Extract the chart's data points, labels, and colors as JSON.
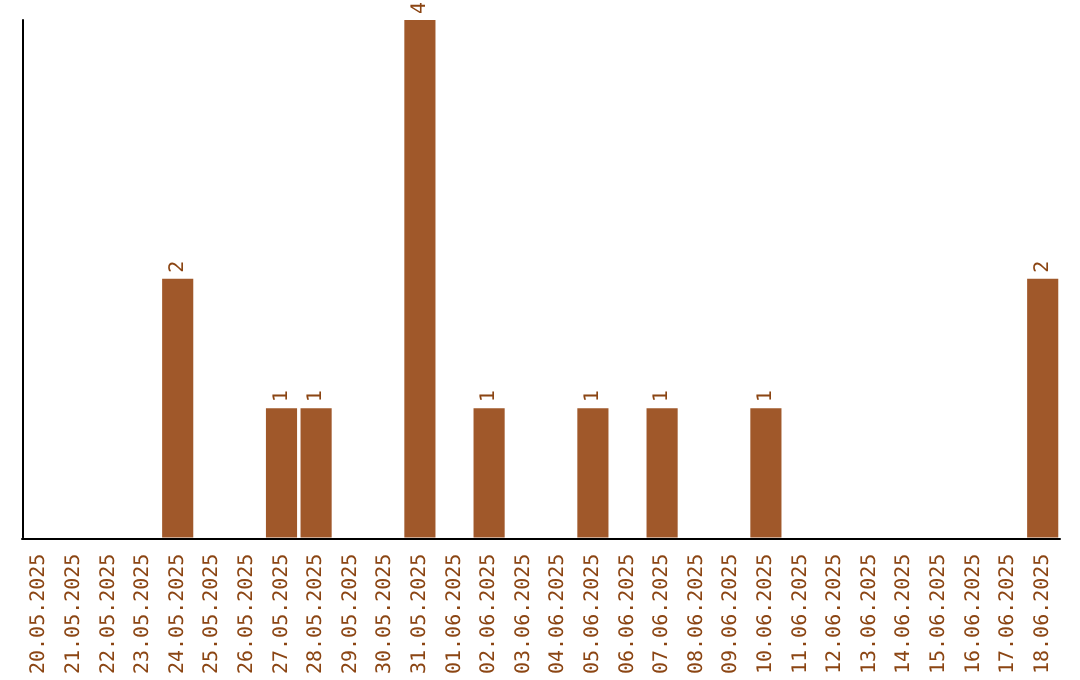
{
  "chart_data": {
    "type": "bar",
    "categories": [
      "20.05.2025",
      "21.05.2025",
      "22.05.2025",
      "23.05.2025",
      "24.05.2025",
      "25.05.2025",
      "26.05.2025",
      "27.05.2025",
      "28.05.2025",
      "29.05.2025",
      "30.05.2025",
      "31.05.2025",
      "01.06.2025",
      "02.06.2025",
      "03.06.2025",
      "04.06.2025",
      "05.06.2025",
      "06.06.2025",
      "07.06.2025",
      "08.06.2025",
      "09.06.2025",
      "10.06.2025",
      "11.06.2025",
      "12.06.2025",
      "13.06.2025",
      "14.06.2025",
      "15.06.2025",
      "16.06.2025",
      "17.06.2025",
      "18.06.2025"
    ],
    "values": [
      0,
      0,
      0,
      0,
      2,
      0,
      0,
      1,
      1,
      0,
      0,
      4,
      0,
      1,
      0,
      0,
      1,
      0,
      1,
      0,
      0,
      1,
      0,
      0,
      0,
      0,
      0,
      0,
      0,
      2
    ],
    "value_labels": [
      null,
      null,
      null,
      null,
      "2",
      null,
      null,
      "1",
      "1",
      null,
      null,
      "4",
      null,
      "1",
      null,
      null,
      "1",
      null,
      "1",
      null,
      null,
      "1",
      null,
      null,
      null,
      null,
      null,
      null,
      null,
      "2"
    ],
    "color": "#a0582a",
    "grid": false
  }
}
